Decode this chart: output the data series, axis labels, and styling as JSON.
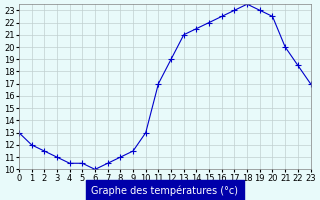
{
  "x": [
    0,
    1,
    2,
    3,
    4,
    5,
    6,
    7,
    8,
    9,
    10,
    11,
    12,
    13,
    14,
    15,
    16,
    17,
    18,
    19,
    20,
    21,
    22,
    23
  ],
  "y": [
    13.0,
    12.0,
    11.5,
    11.0,
    10.5,
    10.5,
    10.0,
    10.5,
    11.0,
    11.5,
    13.0,
    17.0,
    19.0,
    21.0,
    21.5,
    22.0,
    22.5,
    23.0,
    23.5,
    23.0,
    22.5,
    20.0,
    18.5,
    17.0
  ],
  "line_color": "#0000cc",
  "marker": "+",
  "marker_size": 5,
  "bg_color": "#e8fafa",
  "grid_color": "#c0d0d0",
  "xlabel": "Graphe des températures (°c)",
  "xlabel_bg": "#0000aa",
  "xlabel_color": "#ffffff",
  "ylim": [
    10,
    23.5
  ],
  "xlim": [
    0,
    23
  ],
  "yticks": [
    10,
    11,
    12,
    13,
    14,
    15,
    16,
    17,
    18,
    19,
    20,
    21,
    22,
    23
  ],
  "xticks": [
    0,
    1,
    2,
    3,
    4,
    5,
    6,
    7,
    8,
    9,
    10,
    11,
    12,
    13,
    14,
    15,
    16,
    17,
    18,
    19,
    20,
    21,
    22,
    23
  ],
  "tick_fontsize": 6,
  "label_fontsize": 7
}
